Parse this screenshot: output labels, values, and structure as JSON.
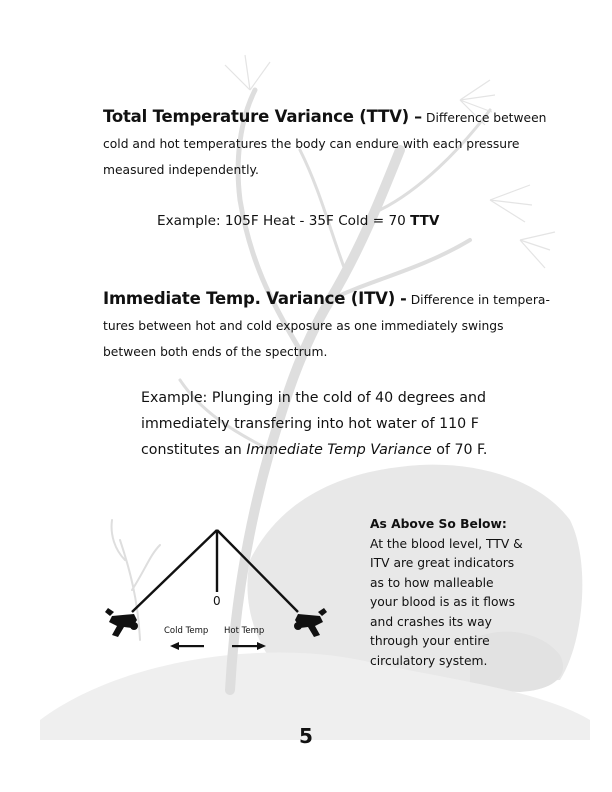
{
  "ttv": {
    "heading": "Total Temperature Variance (TTV)",
    "dash": "–",
    "lead": " Difference between",
    "line2": "cold and hot temperatures the body can endure with each pressure",
    "line3": "measured independently.",
    "example_text": "Example:  105F Heat - 35F  Cold = 70 ",
    "example_bold": "TTV"
  },
  "itv": {
    "heading": "Immediate Temp. Variance (ITV)",
    "dash": "-",
    "lead": " Difference in tempera-",
    "line2": "tures between hot and cold exposure as one immediately swings",
    "line3": "between both ends of the spectrum.",
    "example_line1": "Example:  Plunging in the cold of 40 degrees and",
    "example_line2": "immediately transfering into hot water of 110 F",
    "example_line3_pre": "constitutes an ",
    "example_line3_italic": "Immediate Temp Variance",
    "example_line3_post": " of 70 F."
  },
  "diagram": {
    "zero_label": "0",
    "cold_label": "Cold Temp",
    "hot_label": "Hot Temp"
  },
  "sidebar": {
    "title": "As Above So Below:",
    "lines": [
      "At the blood level, TTV &",
      "ITV are great indicators",
      "as to how malleable",
      "your blood is as it flows",
      "and crashes its way",
      "through your entire",
      "circulatory system."
    ]
  },
  "page_number": "5",
  "colors": {
    "text": "#111111",
    "illustration": "#e6e6e6",
    "illustration_dark": "#d4d4d4"
  }
}
